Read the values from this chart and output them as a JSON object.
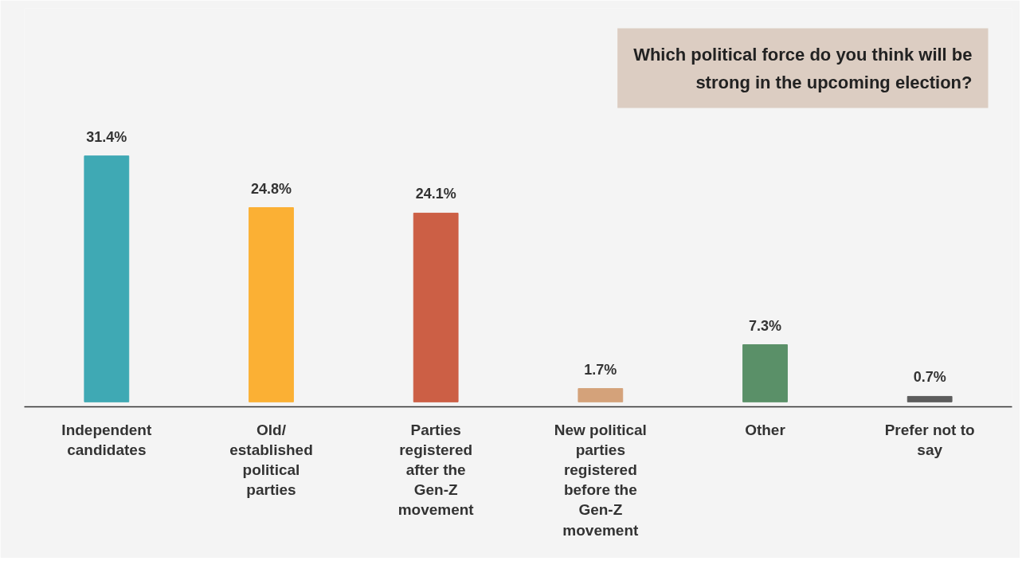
{
  "chart_data": {
    "type": "bar",
    "title": "Which political force do you think will be strong in the upcoming election?",
    "categories": [
      "Independent candidates",
      "Old/ established political parties",
      "Parties registered after the Gen-Z movement",
      "New political parties registered before the Gen-Z movement",
      "Other",
      "Prefer not to say"
    ],
    "values": [
      31.4,
      24.8,
      24.1,
      1.7,
      7.3,
      0.7
    ],
    "colors": [
      "#3fa9b4",
      "#fbb034",
      "#cc5f45",
      "#d4a27a",
      "#5a9068",
      "#5c5c5c"
    ],
    "value_labels": [
      "31.4%",
      "24.8%",
      "24.1%",
      "1.7%",
      "7.3%",
      "0.7%"
    ],
    "grid": false
  }
}
